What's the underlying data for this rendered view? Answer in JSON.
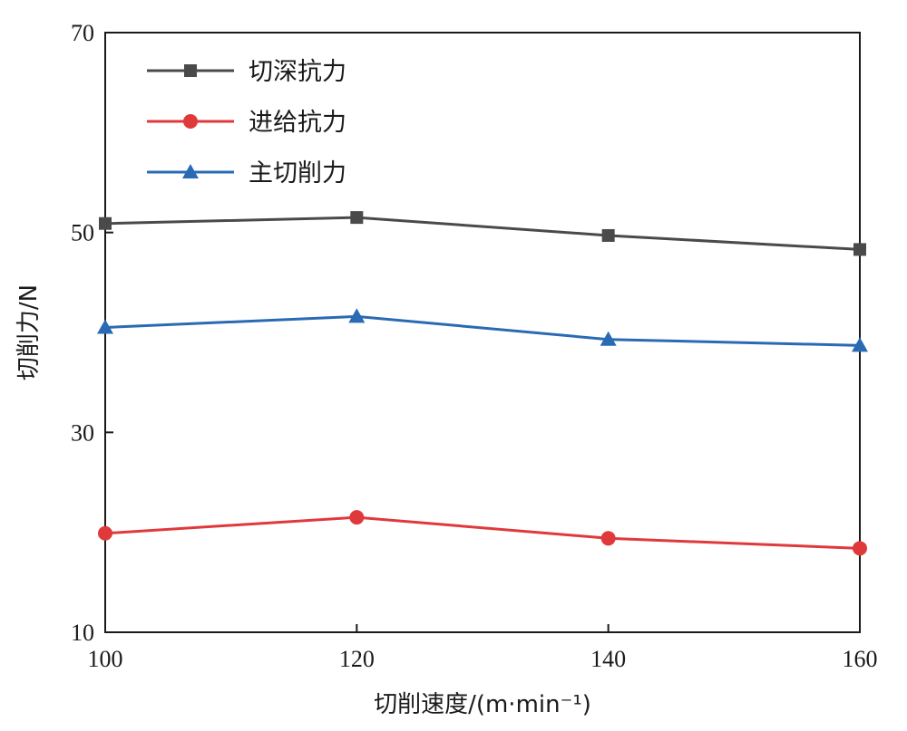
{
  "chart_data": {
    "type": "line",
    "x": [
      100,
      120,
      140,
      160
    ],
    "xlabel": "切削速度/(m·min⁻¹)",
    "ylabel": "切削力/N",
    "xlim": [
      100,
      160
    ],
    "ylim": [
      10,
      70
    ],
    "xticks": [
      100,
      120,
      140,
      160
    ],
    "yticks": [
      10,
      30,
      50,
      70
    ],
    "grid": false,
    "legend_position": "top-left",
    "series": [
      {
        "name": "切深抗力",
        "values": [
          50.9,
          51.5,
          49.7,
          48.3
        ],
        "color": "#4a4a4a",
        "marker": "square"
      },
      {
        "name": "进给抗力",
        "values": [
          19.9,
          21.5,
          19.4,
          18.4
        ],
        "color": "#e0393b",
        "marker": "circle"
      },
      {
        "name": "主切削力",
        "values": [
          40.5,
          41.6,
          39.3,
          38.7
        ],
        "color": "#2a6ab4",
        "marker": "triangle"
      }
    ]
  }
}
